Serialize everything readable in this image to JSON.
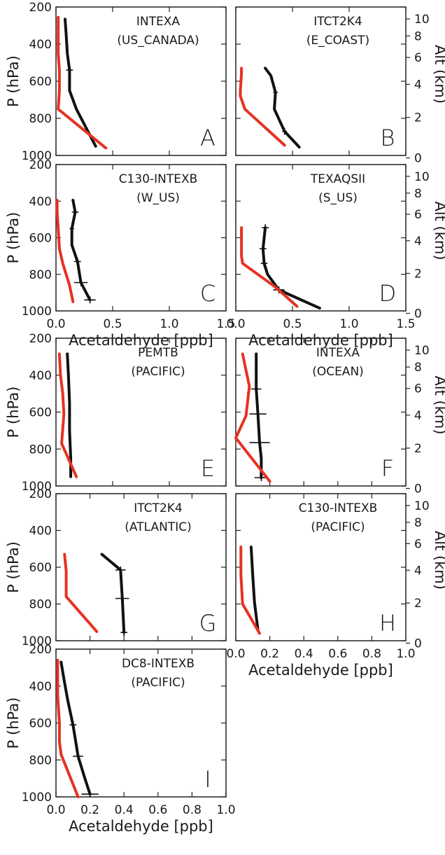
{
  "colors": {
    "model": "#e63222",
    "observed": "#111111",
    "frame": "#222222"
  },
  "axes": {
    "pressure_label": "P (hPa)",
    "altitude_label": "Alt (km)",
    "x_label": "Acetaldehyde [ppb]",
    "p_ticks": [
      "200",
      "400",
      "600",
      "800",
      "1000"
    ],
    "alt_ticks": [
      "0",
      "2",
      "4",
      "6",
      "8",
      "10"
    ],
    "x_ticks_wide": [
      "0.0",
      "0.5",
      "1.0",
      "1.5"
    ],
    "x_ticks_narrow": [
      "0.0",
      "0.2",
      "0.4",
      "0.6",
      "0.8",
      "1.0"
    ],
    "x_ticks_panel_c": [
      "0.0",
      "0.5",
      "1.0",
      "1.5"
    ]
  },
  "chart_data": [
    {
      "type": "line",
      "panel": "A",
      "label_line1": "INTEXA",
      "label_line2": "(US_CANADA)",
      "xlim": [
        0,
        1.5
      ],
      "ylim": [
        1000,
        200
      ],
      "yscale": "pressure",
      "series": [
        {
          "role": "observed",
          "x": [
            0.08,
            0.09,
            0.1,
            0.12,
            0.12,
            0.18,
            0.35
          ],
          "y": [
            265,
            350,
            450,
            540,
            650,
            750,
            950
          ],
          "errors": [
            [
              540,
              0.03
            ]
          ]
        },
        {
          "role": "model",
          "x": [
            0.02,
            0.02,
            0.02,
            0.03,
            0.03,
            0.02,
            0.44
          ],
          "y": [
            255,
            350,
            450,
            540,
            650,
            750,
            960
          ]
        }
      ]
    },
    {
      "type": "line",
      "panel": "B",
      "label_line1": "ITCT2K4",
      "label_line2": "(E_COAST)",
      "xlim": [
        0,
        1.5
      ],
      "ylim": [
        1000,
        200
      ],
      "yscale": "pressure",
      "series": [
        {
          "role": "observed",
          "x": [
            0.26,
            0.31,
            0.35,
            0.34,
            0.43,
            0.56
          ],
          "y": [
            530,
            570,
            660,
            750,
            870,
            955
          ],
          "errors": [
            [
              660,
              0.02
            ],
            [
              870,
              0.02
            ]
          ]
        },
        {
          "role": "model",
          "x": [
            0.05,
            0.05,
            0.04,
            0.04,
            0.08,
            0.43
          ],
          "y": [
            530,
            560,
            650,
            680,
            750,
            945
          ]
        }
      ]
    },
    {
      "type": "line",
      "panel": "C",
      "label_line1": "C130-INTEXB",
      "label_line2": "(W_US)",
      "xlim": [
        0,
        1.5
      ],
      "ylim": [
        1000,
        200
      ],
      "yscale": "pressure",
      "series": [
        {
          "role": "observed",
          "x": [
            0.15,
            0.17,
            0.14,
            0.14,
            0.19,
            0.22,
            0.3
          ],
          "y": [
            395,
            460,
            550,
            640,
            730,
            845,
            940
          ],
          "errors": [
            [
              460,
              0.03
            ],
            [
              550,
              0.02
            ],
            [
              730,
              0.03
            ],
            [
              845,
              0.06
            ],
            [
              940,
              0.05
            ]
          ]
        },
        {
          "role": "model",
          "x": [
            0.01,
            0.01,
            0.02,
            0.03,
            0.06,
            0.12,
            0.15
          ],
          "y": [
            395,
            460,
            550,
            660,
            740,
            860,
            950
          ]
        }
      ]
    },
    {
      "type": "line",
      "panel": "D",
      "label_line1": "TEXAQSII",
      "label_line2": "(S_US)",
      "xlim": [
        0,
        1.5
      ],
      "ylim": [
        1000,
        200
      ],
      "yscale": "pressure",
      "series": [
        {
          "role": "observed",
          "x": [
            0.26,
            0.24,
            0.25,
            0.28,
            0.38,
            0.74
          ],
          "y": [
            545,
            660,
            740,
            800,
            885,
            985
          ],
          "errors": [
            [
              545,
              0.03
            ],
            [
              660,
              0.03
            ],
            [
              740,
              0.03
            ],
            [
              885,
              0.05
            ]
          ]
        },
        {
          "role": "model",
          "x": [
            0.05,
            0.05,
            0.05,
            0.06,
            0.35,
            0.54
          ],
          "y": [
            545,
            600,
            700,
            740,
            870,
            975
          ]
        }
      ]
    },
    {
      "type": "line",
      "panel": "E",
      "label_line1": "PEMTB",
      "label_line2": "(PACIFIC)",
      "xlim": [
        0,
        1.5
      ],
      "ylim": [
        1000,
        200
      ],
      "yscale": "pressure",
      "series": [
        {
          "role": "observed",
          "x": [
            0.1,
            0.11,
            0.12,
            0.12,
            0.13,
            0.13
          ],
          "y": [
            285,
            400,
            550,
            700,
            850,
            950
          ]
        },
        {
          "role": "model",
          "x": [
            0.03,
            0.04,
            0.06,
            0.07,
            0.05,
            0.18
          ],
          "y": [
            285,
            400,
            500,
            610,
            770,
            950
          ]
        }
      ]
    },
    {
      "type": "line",
      "panel": "F",
      "label_line1": "INTEXA",
      "label_line2": "(OCEAN)",
      "xlim": [
        0,
        1.0
      ],
      "ylim": [
        1000,
        200
      ],
      "yscale": "pressure",
      "series": [
        {
          "role": "observed",
          "x": [
            0.12,
            0.12,
            0.13,
            0.14,
            0.15,
            0.15
          ],
          "y": [
            285,
            475,
            610,
            765,
            850,
            955
          ],
          "errors": [
            [
              475,
              0.03
            ],
            [
              610,
              0.05
            ],
            [
              765,
              0.06
            ],
            [
              955,
              0.04
            ]
          ]
        },
        {
          "role": "model",
          "x": [
            0.04,
            0.08,
            0.06,
            0.0,
            0.2
          ],
          "y": [
            285,
            460,
            620,
            740,
            975
          ]
        }
      ]
    },
    {
      "type": "line",
      "panel": "G",
      "label_line1": "ITCT2K4",
      "label_line2": "(ATLANTIC)",
      "xlim": [
        0,
        1.0
      ],
      "ylim": [
        1000,
        200
      ],
      "yscale": "pressure",
      "series": [
        {
          "role": "observed",
          "x": [
            0.27,
            0.38,
            0.39,
            0.4
          ],
          "y": [
            530,
            615,
            770,
            955
          ],
          "errors": [
            [
              615,
              0.03
            ],
            [
              770,
              0.04
            ],
            [
              955,
              0.02
            ]
          ]
        },
        {
          "role": "model",
          "x": [
            0.05,
            0.06,
            0.06,
            0.24
          ],
          "y": [
            530,
            620,
            760,
            950
          ]
        }
      ]
    },
    {
      "type": "line",
      "panel": "H",
      "label_line1": "C130-INTEXB",
      "label_line2": "(PACIFIC)",
      "xlim": [
        0,
        1.0
      ],
      "ylim": [
        1000,
        200
      ],
      "yscale": "pressure",
      "series": [
        {
          "role": "observed",
          "x": [
            0.09,
            0.1,
            0.11,
            0.13
          ],
          "y": [
            490,
            650,
            790,
            940
          ]
        },
        {
          "role": "model",
          "x": [
            0.03,
            0.03,
            0.04,
            0.14
          ],
          "y": [
            490,
            640,
            800,
            960
          ]
        }
      ]
    },
    {
      "type": "line",
      "panel": "I",
      "label_line1": "DC8-INTEXB",
      "label_line2": "(PACIFIC)",
      "xlim": [
        0,
        1.0
      ],
      "ylim": [
        1000,
        200
      ],
      "yscale": "pressure",
      "series": [
        {
          "role": "observed",
          "x": [
            0.03,
            0.05,
            0.07,
            0.1,
            0.13,
            0.17,
            0.2
          ],
          "y": [
            270,
            380,
            480,
            610,
            780,
            900,
            985
          ],
          "errors": [
            [
              610,
              0.02
            ],
            [
              780,
              0.03
            ],
            [
              985,
              0.05
            ]
          ]
        },
        {
          "role": "model",
          "x": [
            0.01,
            0.01,
            0.02,
            0.02,
            0.03,
            0.13
          ],
          "y": [
            260,
            450,
            600,
            700,
            770,
            1000
          ]
        }
      ]
    }
  ]
}
